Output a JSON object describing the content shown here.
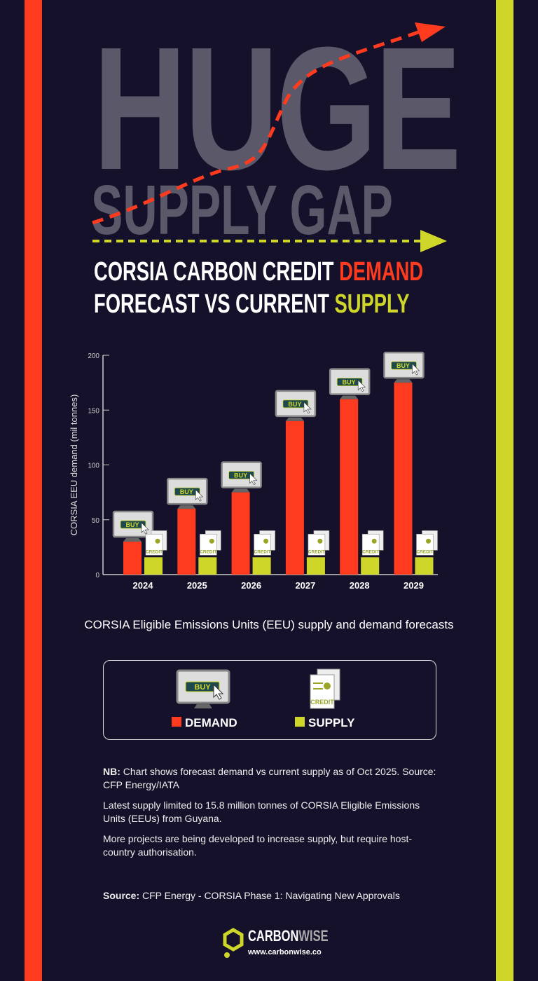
{
  "header": {
    "headline_1": "HUGE",
    "headline_2": "SUPPLY GAP",
    "subtitle_a": "CORSIA CARBON CREDIT ",
    "subtitle_demand": "DEMAND",
    "subtitle_b": "FORECAST VS CURRENT ",
    "subtitle_supply": "SUPPLY"
  },
  "colors": {
    "background": "#15112a",
    "demand": "#ff3b1f",
    "supply": "#cfd62a",
    "headline": "#5b5869"
  },
  "icons": {
    "demand": "computer-buy-button-icon",
    "supply": "credit-certificate-icon"
  },
  "chart_data": {
    "type": "bar",
    "categories": [
      "2024",
      "2025",
      "2026",
      "2027",
      "2028",
      "2029"
    ],
    "series": [
      {
        "name": "DEMAND",
        "values": [
          30,
          60,
          75,
          140,
          160,
          175
        ]
      },
      {
        "name": "SUPPLY",
        "values": [
          15.8,
          15.8,
          15.8,
          15.8,
          15.8,
          15.8
        ]
      }
    ],
    "ylabel": "CORSIA EEU demand (mil tonnes)",
    "yticks": [
      0,
      50,
      100,
      150,
      200
    ],
    "ylim": [
      0,
      200
    ],
    "grid": false,
    "legend": "bottom",
    "icon_labels": {
      "buy": "BUY",
      "credit": "CREDIT"
    }
  },
  "caption": "CORSIA Eligible Emissions Units (EEU) supply and demand forecasts",
  "legend": {
    "demand": "DEMAND",
    "supply": "SUPPLY"
  },
  "notes": {
    "nb_label": "NB:",
    "nb_text": " Chart shows forecast demand vs current supply as of Oct 2025. Source: CFP Energy/IATA",
    "p2": "Latest supply limited to 15.8 million tonnes of CORSIA Eligible Emissions Units (EEUs) from Guyana.",
    "p3": "More projects are being developed to increase supply, but require host-country authorisation.",
    "source_label": "Source:",
    "source_text": " CFP Energy - CORSIA Phase 1: Navigating New Approvals"
  },
  "footer": {
    "brand_a": "CARBON",
    "brand_b": "WISE",
    "url": "www.carbonwise.co"
  }
}
